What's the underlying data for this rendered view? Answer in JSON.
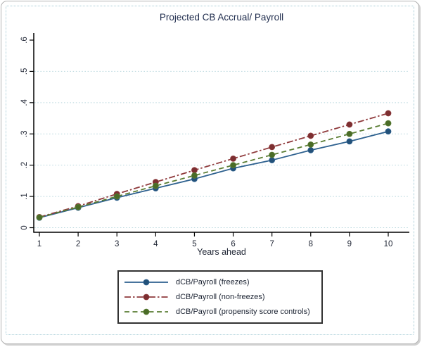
{
  "chart_data": {
    "type": "line",
    "title": "Projected CB Accrual/ Payroll",
    "xlabel": "Years ahead",
    "ylabel": "",
    "x": [
      1,
      2,
      3,
      4,
      5,
      6,
      7,
      8,
      9,
      10
    ],
    "xlim": [
      1,
      10
    ],
    "ylim": [
      0,
      0.6
    ],
    "xtick_labels": [
      "1",
      "2",
      "3",
      "4",
      "5",
      "6",
      "7",
      "8",
      "9",
      "10"
    ],
    "ytick_values": [
      0,
      0.1,
      0.2,
      0.3,
      0.4,
      0.5,
      0.6
    ],
    "ytick_labels": [
      "0",
      ".1",
      ".2",
      ".3",
      ".4",
      ".5",
      ".6"
    ],
    "gridline_values": [
      0,
      0.1,
      0.2,
      0.3,
      0.4,
      0.5
    ],
    "grid_style": "dotted-horizontal",
    "grid_color": "#b9d8de",
    "legend_position": "bottom-center",
    "series": [
      {
        "name": "dCB/Payroll (freezes)",
        "line_style": "solid",
        "color": "#2e618f",
        "marker": "circle",
        "marker_color": "#235179",
        "values": [
          0.032,
          0.064,
          0.096,
          0.126,
          0.156,
          0.19,
          0.216,
          0.248,
          0.276,
          0.308
        ]
      },
      {
        "name": "dCB/Payroll (non-freezes)",
        "line_style": "dash-dot",
        "color": "#8f3a3c",
        "marker": "circle",
        "marker_color": "#7c2f31",
        "values": [
          0.034,
          0.069,
          0.108,
          0.146,
          0.184,
          0.221,
          0.258,
          0.294,
          0.33,
          0.366
        ]
      },
      {
        "name": "dCB/Payroll (propensity score controls)",
        "line_style": "dashed",
        "color": "#5a7d33",
        "marker": "circle",
        "marker_color": "#4a6b27",
        "values": [
          0.033,
          0.066,
          0.1,
          0.134,
          0.167,
          0.2,
          0.233,
          0.266,
          0.3,
          0.334
        ]
      }
    ]
  },
  "colors": {
    "axis": "#000000",
    "tick_text": "#1e2433",
    "title_text": "#1f2c4d",
    "grid": "#b9d8de",
    "plot_background": "#ffffff",
    "legend_border": "#333333",
    "frame_border": "#b3b3b3",
    "inner_dotted_border": "#a6ccd7"
  }
}
